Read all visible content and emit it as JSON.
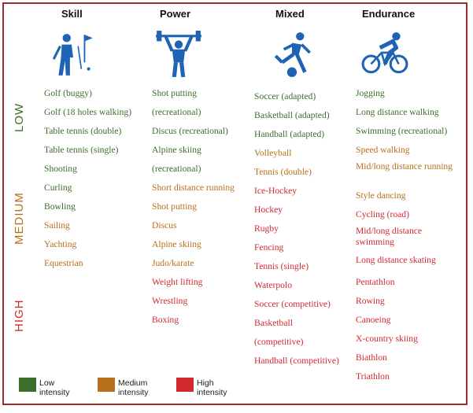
{
  "columns": [
    {
      "key": "skill",
      "title": "Skill",
      "icon": "golf-icon"
    },
    {
      "key": "power",
      "title": "Power",
      "icon": "weightlifting-icon"
    },
    {
      "key": "mixed",
      "title": "Mixed",
      "icon": "soccer-icon"
    },
    {
      "key": "endurance",
      "title": "Endurance",
      "icon": "cycling-icon"
    }
  ],
  "levels": {
    "low": "LOW",
    "medium": "MEDIUM",
    "high": "HIGH"
  },
  "colors": {
    "low": "#3c6e2b",
    "medium": "#b5701a",
    "high": "#d12a30",
    "frame": "#9b2b30",
    "icon": "#1e63b5"
  },
  "skill": [
    {
      "text": "Golf (buggy)",
      "level": "low"
    },
    {
      "text": "Golf (18 holes walking)",
      "level": "low"
    },
    {
      "text": "Table tennis (double)",
      "level": "low"
    },
    {
      "text": "Table tennis (single)",
      "level": "low"
    },
    {
      "text": "Shooting",
      "level": "low"
    },
    {
      "text": "Curling",
      "level": "low"
    },
    {
      "text": "Bowling",
      "level": "low"
    },
    {
      "text": "Sailing",
      "level": "med"
    },
    {
      "text": "Yachting",
      "level": "med"
    },
    {
      "text": "Equestrian",
      "level": "med"
    }
  ],
  "power": [
    {
      "text": "Shot putting",
      "level": "low"
    },
    {
      "text": "(recreational)",
      "level": "low"
    },
    {
      "text": "Discus (recreational)",
      "level": "low"
    },
    {
      "text": "Alpine skiing",
      "level": "low"
    },
    {
      "text": "(recreational)",
      "level": "low"
    },
    {
      "text": "Short distance running",
      "level": "med"
    },
    {
      "text": "Shot putting",
      "level": "med"
    },
    {
      "text": "Discus",
      "level": "med"
    },
    {
      "text": "Alpine skiing",
      "level": "med"
    },
    {
      "text": "Judo/karate",
      "level": "med"
    },
    {
      "text": "Weight lifting",
      "level": "high"
    },
    {
      "text": "Wrestling",
      "level": "high"
    },
    {
      "text": "Boxing",
      "level": "high"
    }
  ],
  "mixed": [
    {
      "text": "Soccer (adapted)",
      "level": "low"
    },
    {
      "text": "Basketball (adapted)",
      "level": "low"
    },
    {
      "text": "Handball (adapted)",
      "level": "low"
    },
    {
      "text": "Volleyball",
      "level": "med"
    },
    {
      "text": "Tennis (double)",
      "level": "med"
    },
    {
      "text": "Ice-Hockey",
      "level": "high"
    },
    {
      "text": "Hockey",
      "level": "high"
    },
    {
      "text": "Rugby",
      "level": "high"
    },
    {
      "text": "Fencing",
      "level": "high"
    },
    {
      "text": "Tennis (single)",
      "level": "high"
    },
    {
      "text": "Waterpolo",
      "level": "high"
    },
    {
      "text": "Soccer (competitive)",
      "level": "high"
    },
    {
      "text": "Basketball",
      "level": "high"
    },
    {
      "text": "(competitive)",
      "level": "high"
    },
    {
      "text": "Handball (competitive)",
      "level": "high"
    }
  ],
  "endurance": [
    {
      "text": "Jogging",
      "level": "low"
    },
    {
      "text": "Long distance walking",
      "level": "low"
    },
    {
      "text": "Swimming (recreational)",
      "level": "low"
    },
    {
      "text": "Speed walking",
      "level": "med"
    },
    {
      "text": "Mid/long distance running",
      "level": "med",
      "two": true
    },
    {
      "text": "Style dancing",
      "level": "med"
    },
    {
      "text": "Cycling (road)",
      "level": "high"
    },
    {
      "text": "Mid/long distance swimming",
      "level": "high",
      "two": true
    },
    {
      "text": "Long distance skating",
      "level": "high"
    },
    {
      "text": "Pentathlon",
      "level": "high"
    },
    {
      "text": "Rowing",
      "level": "high"
    },
    {
      "text": "Canoeing",
      "level": "high"
    },
    {
      "text": "X-country skiing",
      "level": "high"
    },
    {
      "text": "Biathlon",
      "level": "high"
    },
    {
      "text": "Triathlon",
      "level": "high"
    }
  ],
  "legend": [
    {
      "label": "Low intensity",
      "color": "#3c6e2b"
    },
    {
      "label": "Medium intensity",
      "color": "#b5701a"
    },
    {
      "label": "High intensity",
      "color": "#d12a30"
    }
  ]
}
